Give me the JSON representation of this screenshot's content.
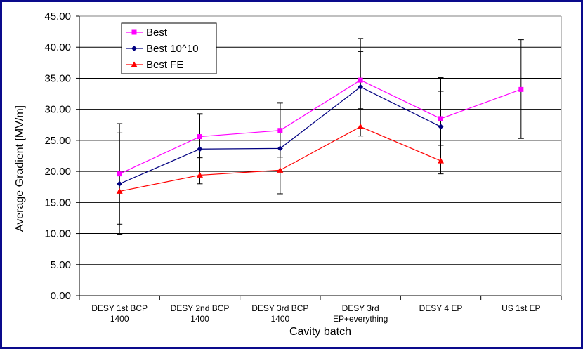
{
  "chart_data": {
    "type": "line",
    "title": "",
    "xlabel": "Cavity batch",
    "ylabel": "Average Gradient [MV/m]",
    "ylim": [
      0,
      45
    ],
    "ytick_step": 5,
    "ytick_labels": [
      "0.00",
      "5.00",
      "10.00",
      "15.00",
      "20.00",
      "25.00",
      "30.00",
      "35.00",
      "40.00",
      "45.00"
    ],
    "grid": "horizontal",
    "legend_position": "top-left",
    "categories": [
      [
        "DESY 1st BCP",
        "1400"
      ],
      [
        "DESY 2nd BCP",
        "1400"
      ],
      [
        "DESY 3rd BCP",
        "1400"
      ],
      [
        "DESY 3rd",
        "EP+everything"
      ],
      [
        "DESY 4 EP"
      ],
      [
        "US 1st EP"
      ]
    ],
    "series": [
      {
        "name": "Best",
        "color": "#ff00ff",
        "marker": "square",
        "values": [
          19.6,
          25.6,
          26.6,
          34.7,
          28.5,
          33.2
        ],
        "err_low": [
          9.9,
          22.2,
          16.4,
          25.7,
          19.6,
          25.3
        ],
        "err_high": [
          27.7,
          29.3,
          31.1,
          41.4,
          35.1,
          41.2
        ]
      },
      {
        "name": "Best 10^10",
        "color": "#000080",
        "marker": "diamond",
        "values": [
          18.0,
          23.6,
          23.7,
          33.6,
          27.2,
          null
        ],
        "err_low": [
          11.5,
          18.0,
          22.3,
          30.1,
          24.2,
          null
        ],
        "err_high": [
          26.2,
          29.2,
          31.0,
          39.3,
          32.9,
          null
        ]
      },
      {
        "name": "Best FE",
        "color": "#ff0000",
        "marker": "triangle",
        "values": [
          16.8,
          19.4,
          20.2,
          27.2,
          21.7,
          null
        ]
      }
    ]
  }
}
